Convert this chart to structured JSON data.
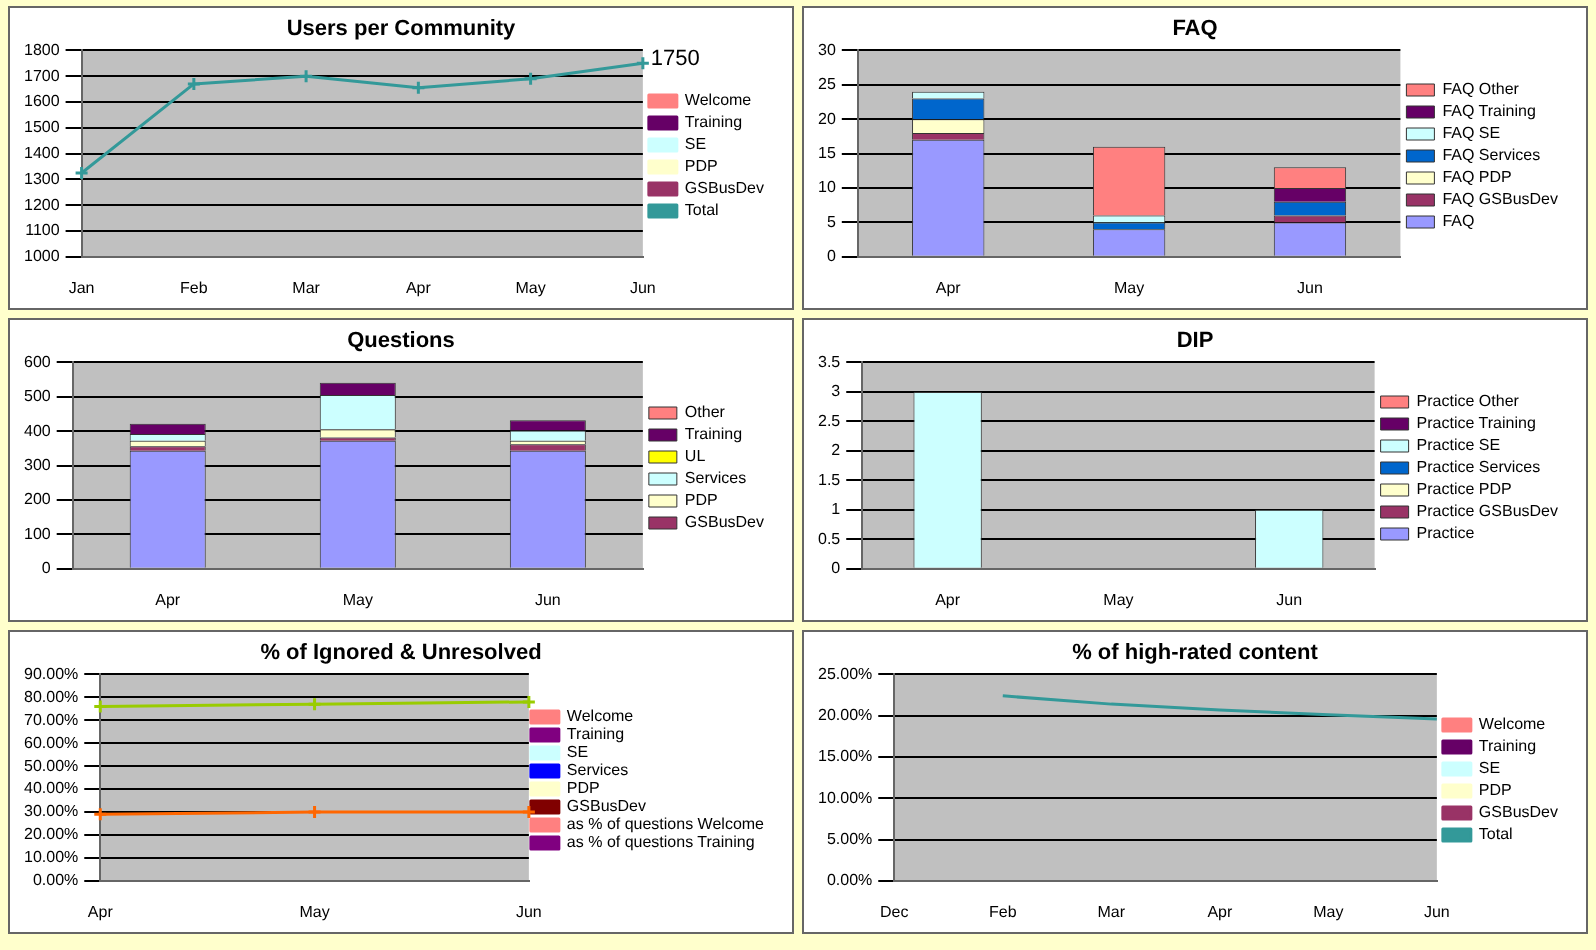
{
  "chart_data": [
    {
      "type": "line",
      "title": "Users per Community",
      "categories": [
        "Jan",
        "Feb",
        "Mar",
        "Apr",
        "May",
        "Jun"
      ],
      "ylim": [
        1000,
        1800
      ],
      "yticks": [
        1000,
        1100,
        1200,
        1300,
        1400,
        1500,
        1600,
        1700,
        1800
      ],
      "grid": "y",
      "legend": "right",
      "marker": "cross",
      "series": [
        {
          "name": "Welcome",
          "color": "#ff8080",
          "values": [
            null,
            null,
            null,
            null,
            null,
            null
          ]
        },
        {
          "name": "Training",
          "color": "#660066",
          "values": [
            null,
            null,
            null,
            null,
            null,
            null
          ]
        },
        {
          "name": "SE",
          "color": "#ccffff",
          "values": [
            null,
            null,
            null,
            null,
            null,
            null
          ]
        },
        {
          "name": "PDP",
          "color": "#ffffcc",
          "values": [
            null,
            null,
            null,
            null,
            null,
            null
          ]
        },
        {
          "name": "GSBusDev",
          "color": "#993366",
          "values": [
            null,
            null,
            null,
            null,
            null,
            null
          ]
        },
        {
          "name": "Total",
          "color": "#339999",
          "values": [
            1325,
            1670,
            1700,
            1655,
            1690,
            1750
          ],
          "value_labels": [
            null,
            null,
            null,
            null,
            null,
            "1750"
          ]
        }
      ]
    },
    {
      "type": "bar",
      "title": "FAQ",
      "categories": [
        "Apr",
        "May",
        "Jun"
      ],
      "stacked": true,
      "ylim": [
        0,
        30
      ],
      "yticks": [
        0,
        5,
        10,
        15,
        20,
        25,
        30
      ],
      "grid": "y",
      "legend": "right",
      "series": [
        {
          "name": "FAQ",
          "color": "#9999ff",
          "values": [
            17,
            4,
            5
          ]
        },
        {
          "name": "FAQ GSBusDev",
          "color": "#993366",
          "values": [
            1,
            0,
            1
          ]
        },
        {
          "name": "FAQ PDP",
          "color": "#ffffcc",
          "values": [
            2,
            0,
            0
          ]
        },
        {
          "name": "FAQ Services",
          "color": "#0066cc",
          "values": [
            3,
            1,
            2
          ]
        },
        {
          "name": "FAQ SE",
          "color": "#ccffff",
          "values": [
            1,
            1,
            0
          ]
        },
        {
          "name": "FAQ Training",
          "color": "#660066",
          "values": [
            0,
            0,
            2
          ]
        },
        {
          "name": "FAQ Other",
          "color": "#ff8080",
          "values": [
            0,
            10,
            3
          ]
        }
      ]
    },
    {
      "type": "bar",
      "title": "Questions",
      "categories": [
        "Apr",
        "May",
        "Jun"
      ],
      "stacked": true,
      "ylim": [
        0,
        600
      ],
      "yticks": [
        0,
        100,
        200,
        300,
        400,
        500,
        600
      ],
      "grid": "y",
      "legend": "right",
      "series": [
        {
          "color": "#9999ff",
          "values": [
            343,
            372,
            343
          ]
        },
        {
          "name": "GSBusDev",
          "color": "#993366",
          "values": [
            13,
            10,
            19
          ]
        },
        {
          "name": "PDP",
          "color": "#ffffcc",
          "values": [
            16,
            24,
            10
          ]
        },
        {
          "name": "Services",
          "color": "#ccffff",
          "values": [
            20,
            99,
            30
          ]
        },
        {
          "name": "UL",
          "color": "#ffff00",
          "values": [
            0,
            0,
            0
          ]
        },
        {
          "name": "Training",
          "color": "#660066",
          "values": [
            30,
            36,
            30
          ]
        },
        {
          "name": "Other",
          "color": "#ff8080",
          "values": [
            0,
            0,
            0
          ]
        }
      ]
    },
    {
      "type": "bar",
      "title": "DIP",
      "categories": [
        "Apr",
        "May",
        "Jun"
      ],
      "stacked": true,
      "ylim": [
        0,
        3.5
      ],
      "yticks": [
        0,
        0.5,
        1,
        1.5,
        2,
        2.5,
        3,
        3.5
      ],
      "grid": "y",
      "legend": "right",
      "series": [
        {
          "name": "Practice",
          "color": "#9999ff",
          "values": [
            0,
            0,
            0
          ]
        },
        {
          "name": "Practice GSBusDev",
          "color": "#993366",
          "values": [
            0,
            0,
            0
          ]
        },
        {
          "name": "Practice PDP",
          "color": "#ffffcc",
          "values": [
            0,
            0,
            0
          ]
        },
        {
          "name": "Practice Services",
          "color": "#0066cc",
          "values": [
            0,
            0,
            0
          ]
        },
        {
          "name": "Practice SE",
          "color": "#ccffff",
          "values": [
            3,
            0,
            1
          ]
        },
        {
          "name": "Practice Training",
          "color": "#660066",
          "values": [
            0,
            0,
            0
          ]
        },
        {
          "name": "Practice Other",
          "color": "#ff8080",
          "values": [
            0,
            0,
            0
          ]
        }
      ]
    },
    {
      "type": "line",
      "title": "% of Ignored & Unresolved",
      "categories": [
        "Apr",
        "May",
        "Jun"
      ],
      "ylim": [
        0,
        90
      ],
      "yticks": [
        {
          "value": 0,
          "label": "0.00%"
        },
        {
          "value": 10,
          "label": "10.00%"
        },
        {
          "value": 20,
          "label": "20.00%"
        },
        {
          "value": 30,
          "label": "30.00%"
        },
        {
          "value": 40,
          "label": "40.00%"
        },
        {
          "value": 50,
          "label": "50.00%"
        },
        {
          "value": 60,
          "label": "60.00%"
        },
        {
          "value": 70,
          "label": "70.00%"
        },
        {
          "value": 80,
          "label": "80.00%"
        },
        {
          "value": 90,
          "label": "90.00%"
        }
      ],
      "grid": "y",
      "legend": "right",
      "marker": "cross",
      "series": [
        {
          "name": "Welcome",
          "color": "#ff8080",
          "values": [
            null,
            null,
            null
          ]
        },
        {
          "name": "Training",
          "color": "#800080",
          "values": [
            null,
            null,
            null
          ]
        },
        {
          "name": "SE",
          "color": "#ccffff",
          "values": [
            null,
            null,
            null
          ]
        },
        {
          "name": "Services",
          "color": "#0000ff",
          "values": [
            null,
            null,
            null
          ]
        },
        {
          "name": "PDP",
          "color": "#ffffcc",
          "values": [
            null,
            null,
            null
          ]
        },
        {
          "name": "GSBusDev",
          "color": "#800000",
          "values": [
            null,
            null,
            null
          ]
        },
        {
          "name": "as % of questions Welcome",
          "color": "#ff8080",
          "values": [
            null,
            null,
            null
          ]
        },
        {
          "name": "as % of questions Training",
          "color": "#800080",
          "values": [
            null,
            null,
            null
          ]
        },
        {
          "color": "#99cc00",
          "values": [
            76,
            77,
            78
          ]
        },
        {
          "color": "#ff6600",
          "values": [
            29,
            30,
            30
          ]
        }
      ]
    },
    {
      "type": "line",
      "title": "% of high-rated content",
      "categories": [
        "Dec",
        "Feb",
        "Mar",
        "Apr",
        "May",
        "Jun"
      ],
      "ylim": [
        0,
        25
      ],
      "yticks": [
        {
          "value": 0,
          "label": "0.00%"
        },
        {
          "value": 5,
          "label": "5.00%"
        },
        {
          "value": 10,
          "label": "10.00%"
        },
        {
          "value": 15,
          "label": "15.00%"
        },
        {
          "value": 20,
          "label": "20.00%"
        },
        {
          "value": 25,
          "label": "25.00%"
        }
      ],
      "grid": "y",
      "legend": "right",
      "series": [
        {
          "name": "Welcome",
          "color": "#ff8080",
          "values": [
            null,
            null,
            null,
            null,
            null,
            null
          ]
        },
        {
          "name": "Training",
          "color": "#660066",
          "values": [
            null,
            null,
            null,
            null,
            null,
            null
          ]
        },
        {
          "name": "SE",
          "color": "#ccffff",
          "values": [
            null,
            null,
            null,
            null,
            null,
            null
          ]
        },
        {
          "name": "PDP",
          "color": "#ffffcc",
          "values": [
            null,
            null,
            null,
            null,
            null,
            null
          ]
        },
        {
          "name": "GSBusDev",
          "color": "#993366",
          "values": [
            null,
            null,
            null,
            null,
            null,
            null
          ]
        },
        {
          "name": "Total",
          "color": "#339999",
          "values": [
            null,
            22.4,
            21.4,
            20.7,
            20.1,
            19.6
          ]
        }
      ]
    }
  ]
}
